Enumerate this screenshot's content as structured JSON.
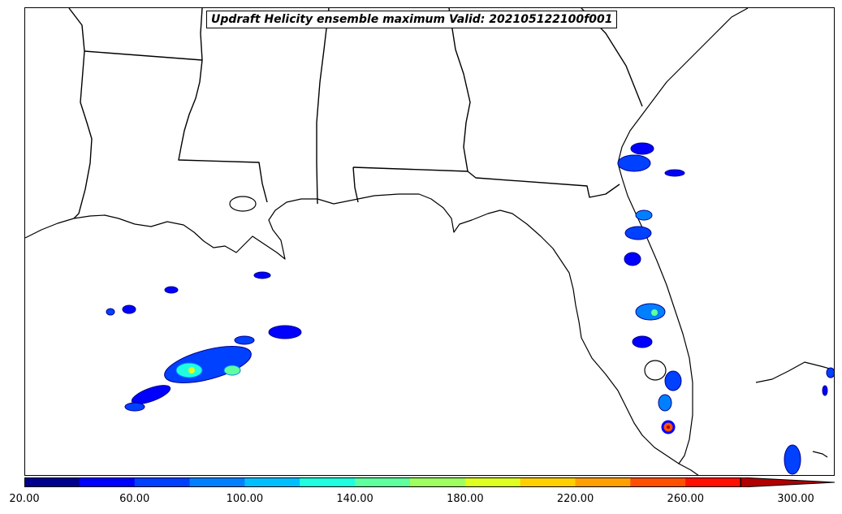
{
  "title": "Updraft Helicity ensemble maximum Valid: 202105122100f001",
  "colorbar": {
    "ticks": [
      "20.00",
      "60.00",
      "100.00",
      "140.00",
      "180.00",
      "220.00",
      "260.00",
      "300.00"
    ],
    "tick_values": [
      20,
      60,
      100,
      140,
      180,
      220,
      260,
      300
    ],
    "range": [
      20,
      300
    ],
    "extend": "max",
    "colors": [
      "#00008f",
      "#0000ff",
      "#0040ff",
      "#0080ff",
      "#00bfff",
      "#1fffe0",
      "#60ff9f",
      "#9fff60",
      "#dfff20",
      "#ffd000",
      "#ffa000",
      "#ff5000",
      "#ff1000",
      "#b00000",
      "#800000"
    ]
  },
  "map": {
    "region": "Southeastern United States and Gulf of Mexico",
    "land_color": "#ffffff",
    "boundary_color": "#000000"
  }
}
